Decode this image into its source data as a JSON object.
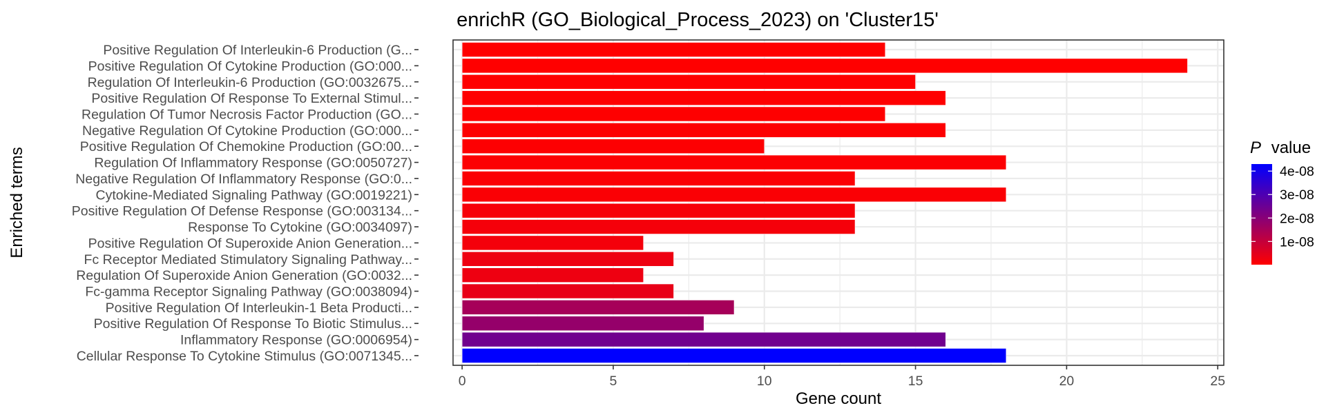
{
  "chart_data": {
    "type": "bar",
    "orientation": "horizontal",
    "title": "enrichR (GO_Biological_Process_2023) on 'Cluster15'",
    "xlabel": "Gene count",
    "ylabel": "Enriched terms",
    "xlim": [
      -0.3,
      25.2
    ],
    "xticks": [
      0,
      5,
      10,
      15,
      20,
      25
    ],
    "xtick_labels": [
      "0",
      "5",
      "10",
      "15",
      "20",
      "25"
    ],
    "grid": true,
    "legend": {
      "title_italic": "P",
      "title_rest": "value",
      "placement": "right",
      "ticks": [
        4e-08,
        3e-08,
        2e-08,
        1e-08
      ],
      "tick_labels": [
        "4e-08",
        "3e-08",
        "2e-08",
        "1e-08"
      ],
      "range": [
        1e-10,
        4.3e-08
      ],
      "low_color": "#ff0000",
      "high_color": "#0000ff"
    },
    "categories": [
      "Positive Regulation Of Interleukin-6 Production (G...",
      "Positive Regulation Of Cytokine Production (GO:000...",
      "Regulation Of Interleukin-6 Production (GO:0032675...",
      "Positive Regulation Of Response To External Stimul...",
      "Regulation Of Tumor Necrosis Factor Production (GO...",
      "Negative Regulation Of Cytokine Production (GO:000...",
      "Positive Regulation Of Chemokine Production (GO:00...",
      "Regulation Of Inflammatory Response (GO:0050727)",
      "Negative Regulation Of Inflammatory Response (GO:0...",
      "Cytokine-Mediated Signaling Pathway (GO:0019221)",
      "Positive Regulation Of Defense Response (GO:003134...",
      "Response To Cytokine (GO:0034097)",
      "Positive Regulation Of Superoxide Anion Generation...",
      "Fc Receptor Mediated Stimulatory Signaling Pathway...",
      "Regulation Of Superoxide Anion Generation (GO:0032...",
      "Fc-gamma Receptor Signaling Pathway (GO:0038094)",
      "Positive Regulation Of Interleukin-1 Beta Producti...",
      "Positive Regulation Of Response To Biotic Stimulus...",
      "Inflammatory Response (GO:0006954)",
      "Cellular Response To Cytokine Stimulus (GO:0071345..."
    ],
    "values": [
      14,
      24,
      15,
      16,
      14,
      16,
      10,
      18,
      13,
      18,
      13,
      13,
      6,
      7,
      6,
      7,
      9,
      8,
      16,
      18
    ],
    "p_values": [
      1e-10,
      1e-10,
      2e-10,
      3e-10,
      3e-10,
      4e-10,
      5e-10,
      6e-10,
      8e-10,
      1e-09,
      1.5e-09,
      1.8e-09,
      2e-09,
      3e-09,
      3e-09,
      4e-09,
      1.5e-08,
      1.8e-08,
      2.4e-08,
      4.3e-08
    ]
  }
}
